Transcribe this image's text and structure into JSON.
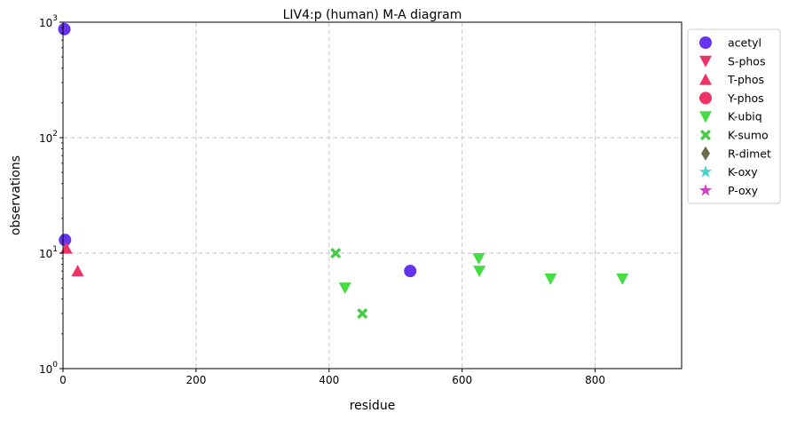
{
  "chart_data": {
    "type": "scatter",
    "title": "LIV4:p (human) M-A diagram",
    "xlabel": "residue",
    "ylabel": "observations",
    "xlim": [
      0,
      930
    ],
    "ylim": [
      1,
      1000
    ],
    "yscale": "log",
    "grid": true,
    "legend_position": "outside-right",
    "x_ticks": [
      {
        "value": 0,
        "label": "0"
      },
      {
        "value": 200,
        "label": "200"
      },
      {
        "value": 400,
        "label": "400"
      },
      {
        "value": 600,
        "label": "600"
      },
      {
        "value": 800,
        "label": "800"
      }
    ],
    "y_ticks": [
      {
        "value": 1,
        "base": "10",
        "exp": "0"
      },
      {
        "value": 10,
        "base": "10",
        "exp": "1"
      },
      {
        "value": 100,
        "base": "10",
        "exp": "2"
      },
      {
        "value": 1000,
        "base": "10",
        "exp": "3"
      }
    ],
    "series": [
      {
        "name": "acetyl",
        "marker": "circle",
        "color": "#6633ee",
        "points": [
          {
            "x": 2,
            "y": 870
          },
          {
            "x": 3,
            "y": 13
          },
          {
            "x": 522,
            "y": 7
          }
        ]
      },
      {
        "name": "S-phos",
        "marker": "triangle-down",
        "color": "#f03366",
        "points": []
      },
      {
        "name": "T-phos",
        "marker": "triangle-up",
        "color": "#f03366",
        "points": [
          {
            "x": 5,
            "y": 11
          },
          {
            "x": 22,
            "y": 7
          }
        ]
      },
      {
        "name": "Y-phos",
        "marker": "circle",
        "color": "#f03366",
        "points": []
      },
      {
        "name": "K-ubiq",
        "marker": "triangle-down",
        "color": "#44dd44",
        "points": [
          {
            "x": 424,
            "y": 5
          },
          {
            "x": 625,
            "y": 9
          },
          {
            "x": 626,
            "y": 7
          },
          {
            "x": 733,
            "y": 6
          },
          {
            "x": 841,
            "y": 6
          }
        ]
      },
      {
        "name": "K-sumo",
        "marker": "x",
        "color": "#44cc44",
        "points": [
          {
            "x": 410,
            "y": 10
          },
          {
            "x": 450,
            "y": 3
          }
        ]
      },
      {
        "name": "R-dimet",
        "marker": "diamond",
        "color": "#6b6b47",
        "points": []
      },
      {
        "name": "K-oxy",
        "marker": "star",
        "color": "#44d4cc",
        "points": []
      },
      {
        "name": "P-oxy",
        "marker": "star",
        "color": "#cc44cc",
        "points": []
      }
    ]
  }
}
